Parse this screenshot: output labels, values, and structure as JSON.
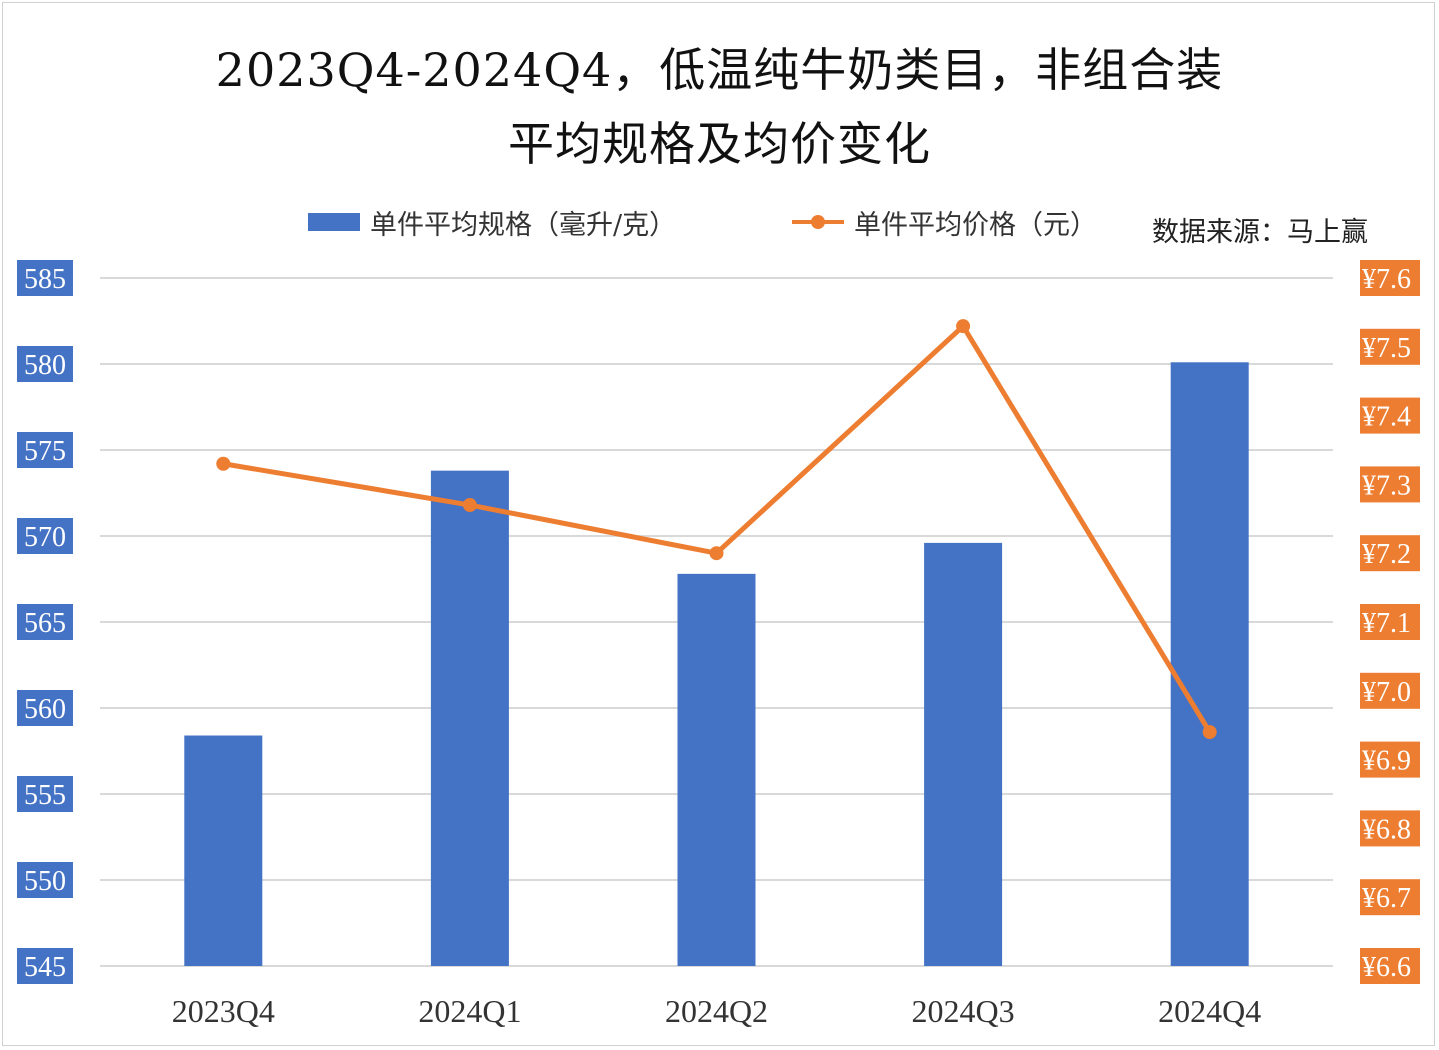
{
  "title_line1": "2023Q4-2024Q4，低温纯牛奶类目，非组合装",
  "title_line2": "平均规格及均价变化",
  "source": "数据来源：马上赢",
  "colors": {
    "bar": "#4472C4",
    "line": "#ED7D31",
    "grid": "#d9d9d9",
    "left_label_bg": "#4472C4",
    "right_label_bg": "#ED7D31"
  },
  "chart_data": {
    "type": "bar",
    "categories": [
      "2023Q4",
      "2024Q1",
      "2024Q2",
      "2024Q3",
      "2024Q4"
    ],
    "series": [
      {
        "name": "单件平均规格（毫升/克）",
        "type": "bar",
        "axis": "left",
        "values": [
          558.4,
          573.8,
          567.8,
          569.6,
          580.1
        ]
      },
      {
        "name": "单件平均价格（元）",
        "type": "line",
        "axis": "right",
        "values": [
          7.33,
          7.27,
          7.2,
          7.53,
          6.94
        ]
      }
    ],
    "y_left": {
      "min": 545,
      "max": 585,
      "step": 5,
      "ticks": [
        "585",
        "580",
        "575",
        "570",
        "565",
        "560",
        "555",
        "550",
        "545"
      ]
    },
    "y_right": {
      "min": 6.6,
      "max": 7.6,
      "step": 0.1,
      "ticks": [
        "¥7.6",
        "¥7.5",
        "¥7.4",
        "¥7.3",
        "¥7.2",
        "¥7.1",
        "¥7.0",
        "¥6.9",
        "¥6.8",
        "¥6.7",
        "¥6.6"
      ]
    },
    "grid": true,
    "legend_position": "top"
  }
}
